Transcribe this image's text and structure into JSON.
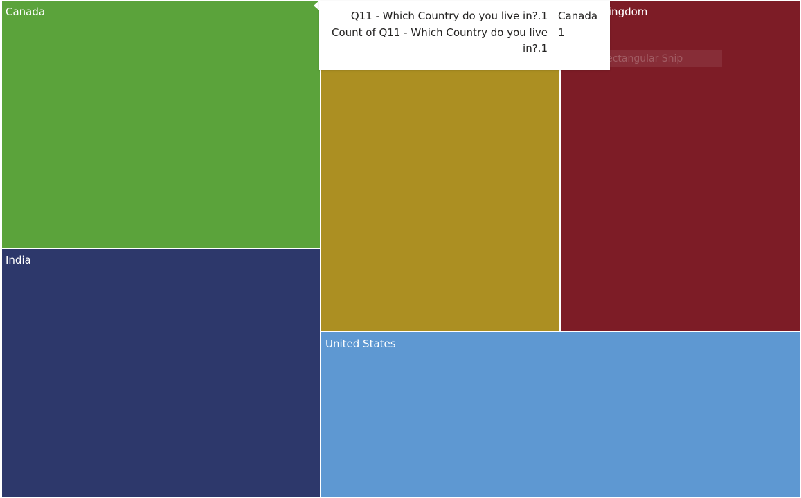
{
  "chart_data": {
    "type": "treemap",
    "categories": [
      "Canada",
      "India",
      "",
      "United Kingdom",
      "United States"
    ],
    "labels": {
      "canada": "Canada",
      "india": "India",
      "uk": "United Kingdom",
      "us": "United States"
    },
    "colors": {
      "canada": "#5ba33b",
      "india": "#2d386b",
      "gold": "#ac8f22",
      "uk": "#7d1c26",
      "us": "#5e98d2"
    }
  },
  "snip": {
    "icon": "close-icon",
    "close_glyph": "×",
    "label": "Rectangular Snip"
  },
  "tooltip": {
    "rows": [
      {
        "key": "Q11 - Which Country do you live in?.1",
        "value": "Canada"
      },
      {
        "key": "Count of Q11 - Which Country do you live in?.1",
        "value": "1"
      }
    ]
  }
}
